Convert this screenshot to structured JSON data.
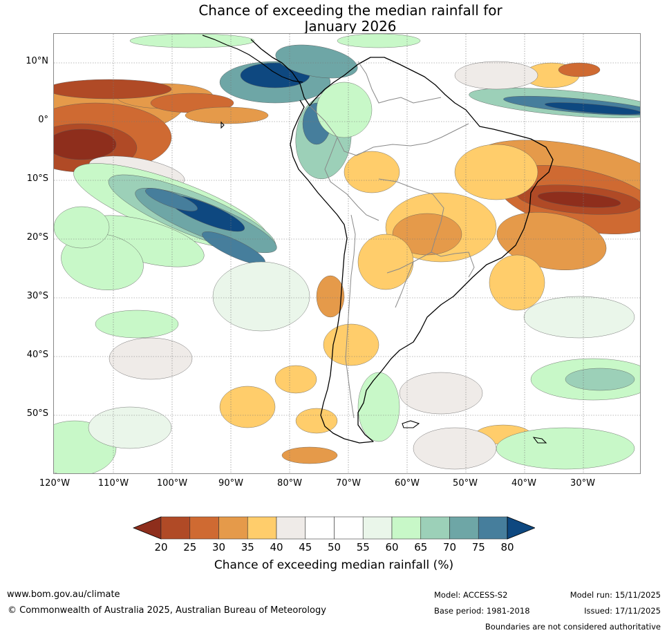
{
  "title": {
    "line1": "Chance of exceeding the median rainfall for",
    "line2": "January 2026"
  },
  "map": {
    "latitude_labels": [
      "10°N",
      "0°",
      "10°S",
      "20°S",
      "30°S",
      "40°S",
      "50°S"
    ],
    "longitude_labels": [
      "120°W",
      "110°W",
      "100°W",
      "90°W",
      "80°W",
      "70°W",
      "60°W",
      "50°W",
      "40°W",
      "30°W"
    ],
    "palette": {
      "p20": "#8e2e1c",
      "p25": "#b04a26",
      "p30": "#cf6a32",
      "p35": "#e59a4a",
      "p40": "#ffcd6b",
      "p45": "#efebe8",
      "p55": "#ffffff",
      "p60": "#eaf6ea",
      "p65": "#c8f8c8",
      "p70": "#9cd0b8",
      "p75": "#6ea6a6",
      "p80": "#467e9c",
      "p85": "#0e4880"
    }
  },
  "colorbar": {
    "ticks": [
      "20",
      "25",
      "30",
      "35",
      "40",
      "45",
      "50",
      "55",
      "60",
      "65",
      "70",
      "75",
      "80"
    ],
    "colors": [
      "#b04a26",
      "#cf6a32",
      "#e59a4a",
      "#ffcd6b",
      "#efebe8",
      "#ffffff",
      "#ffffff",
      "#eaf6ea",
      "#c8f8c8",
      "#9cd0b8",
      "#6ea6a6",
      "#467e9c"
    ],
    "low_color": "#8e2e1c",
    "high_color": "#0e4880",
    "label": "Chance of exceeding median rainfall (%)"
  },
  "footer": {
    "website": "www.bom.gov.au/climate",
    "copyright": "© Commonwealth of Australia 2025, Australian Bureau of Meteorology",
    "model": "Model: ACCESS-S2",
    "base_period": "Base period: 1981-2018",
    "model_run": "Model run: 15/11/2025",
    "issued": "Issued: 17/11/2025",
    "disclaimer": "Boundaries are not considered authoritative"
  }
}
